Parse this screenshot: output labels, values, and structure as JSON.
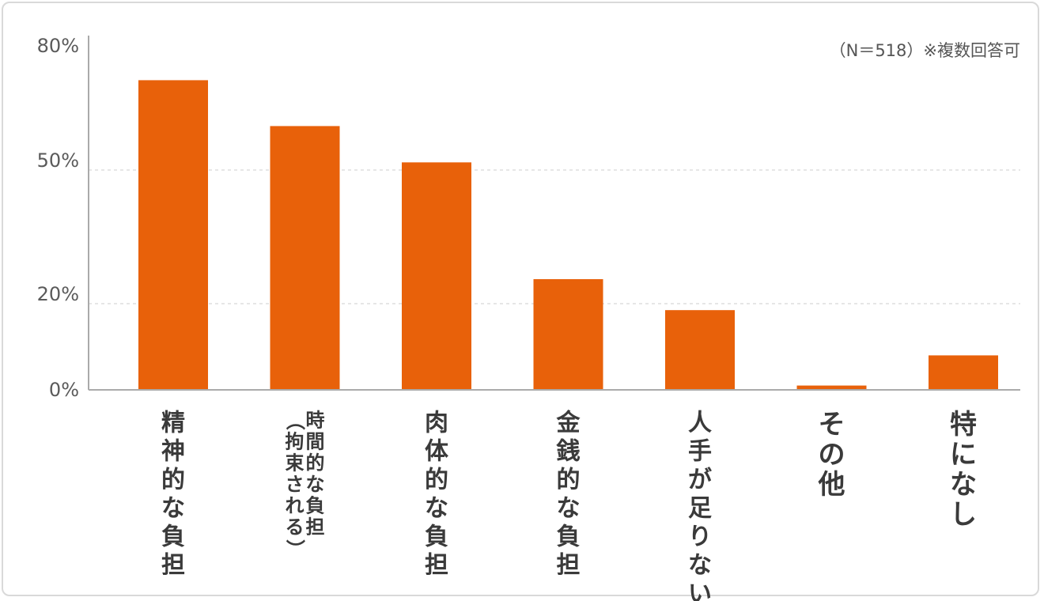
{
  "chart_data": {
    "type": "bar",
    "annotation": "（N＝518）※複数回答可",
    "y_ticks": [
      "80%",
      "50%",
      "20%",
      "0%"
    ],
    "y_tick_values": [
      80,
      50,
      20,
      0
    ],
    "ylim": [
      0,
      80
    ],
    "grid": "dashed horizontal at 50% and 20%",
    "categories": [
      {
        "lines": [
          "精神的な負担"
        ]
      },
      {
        "lines": [
          "時間的な負担",
          "（拘束される）"
        ]
      },
      {
        "lines": [
          "肉体的な負担"
        ]
      },
      {
        "lines": [
          "金銭的な負担"
        ]
      },
      {
        "lines": [
          "人手が足りない"
        ]
      },
      {
        "lines": [
          "その他"
        ]
      },
      {
        "lines": [
          "特になし"
        ]
      }
    ],
    "values": [
      73.5,
      61.5,
      52.0,
      25.5,
      18.5,
      1.0,
      8.0
    ],
    "colors": {
      "bar": "#e8610a",
      "axis": "#aaaaaa",
      "grid": "#cccccc"
    }
  }
}
